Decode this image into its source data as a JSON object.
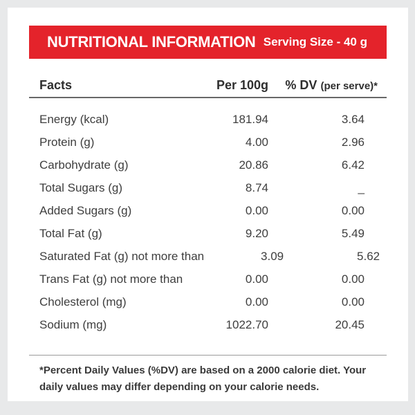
{
  "header": {
    "title": "NUTRITIONAL INFORMATION",
    "serving": "Serving Size - 40 g"
  },
  "columns": {
    "facts": "Facts",
    "per100": "Per 100g",
    "dv_main": "% DV",
    "dv_sub": "(per serve)*"
  },
  "rows": [
    {
      "label": "Energy (kcal)",
      "per100": "181.94",
      "dv": "3.64"
    },
    {
      "label": "Protein (g)",
      "per100": "4.00",
      "dv": "2.96"
    },
    {
      "label": "Carbohydrate (g)",
      "per100": "20.86",
      "dv": "6.42"
    },
    {
      "label": "Total Sugars (g)",
      "per100": "8.74",
      "dv": "_"
    },
    {
      "label": "Added Sugars (g)",
      "per100": "0.00",
      "dv": "0.00"
    },
    {
      "label": "Total Fat (g)",
      "per100": "9.20",
      "dv": "5.49"
    },
    {
      "label": "Saturated Fat (g) not more than",
      "per100": "3.09",
      "dv": "5.62"
    },
    {
      "label": "Trans Fat (g) not more than",
      "per100": "0.00",
      "dv": "0.00"
    },
    {
      "label": "Cholesterol (mg)",
      "per100": "0.00",
      "dv": "0.00"
    },
    {
      "label": "Sodium (mg)",
      "per100": "1022.70",
      "dv": "20.45"
    }
  ],
  "footnote": "*Percent Daily Values (%DV) are based on a 2000 calorie diet. Your daily values may differ depending on your calorie needs.",
  "colors": {
    "accent_red": "#e4232b",
    "frame_gray": "#e8e9ea",
    "card_white": "#ffffff",
    "text_dark": "#3e3e3e",
    "divider_dark": "#686868",
    "divider_light": "#9a9a9a"
  }
}
